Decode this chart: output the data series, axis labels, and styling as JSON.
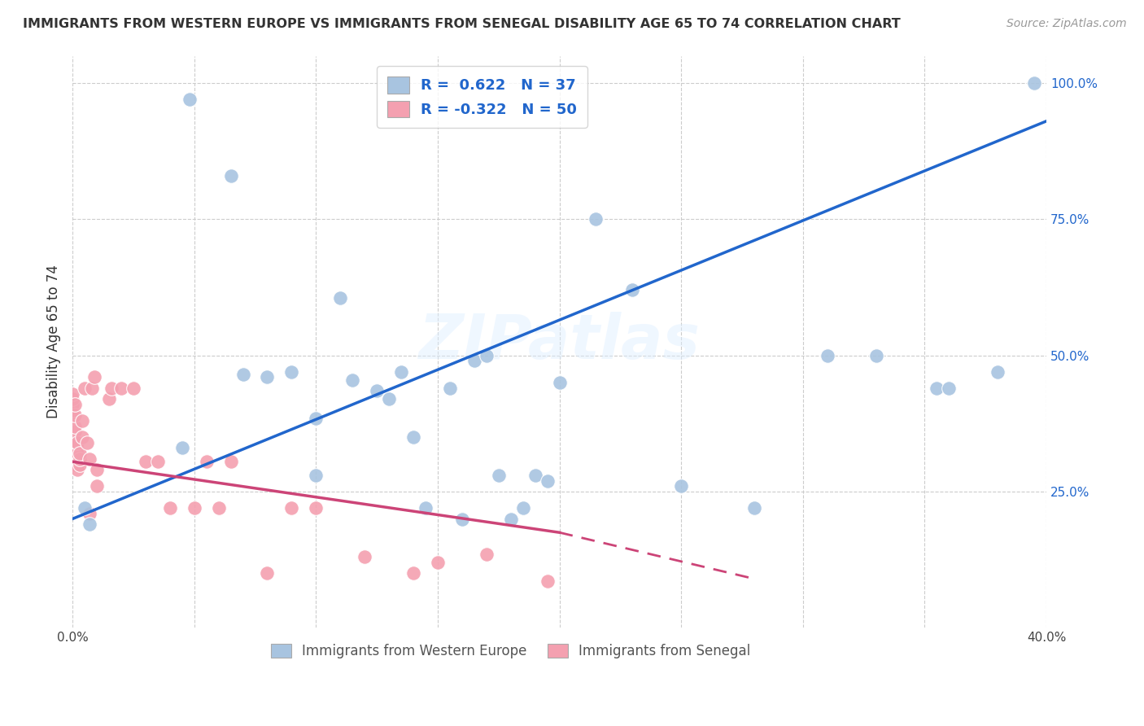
{
  "title": "IMMIGRANTS FROM WESTERN EUROPE VS IMMIGRANTS FROM SENEGAL DISABILITY AGE 65 TO 74 CORRELATION CHART",
  "source": "Source: ZipAtlas.com",
  "ylabel": "Disability Age 65 to 74",
  "xlim": [
    0.0,
    0.4
  ],
  "ylim": [
    0.0,
    1.05
  ],
  "xtick_vals": [
    0.0,
    0.05,
    0.1,
    0.15,
    0.2,
    0.25,
    0.3,
    0.35,
    0.4
  ],
  "xtick_labels": [
    "0.0%",
    "",
    "",
    "",
    "",
    "",
    "",
    "",
    "40.0%"
  ],
  "ytick_vals_right": [
    0.0,
    0.25,
    0.5,
    0.75,
    1.0
  ],
  "ytick_labels_right": [
    "",
    "25.0%",
    "50.0%",
    "75.0%",
    "100.0%"
  ],
  "blue_R": 0.622,
  "blue_N": 37,
  "pink_R": -0.322,
  "pink_N": 50,
  "blue_color": "#A8C4E0",
  "pink_color": "#F4A0B0",
  "blue_line_color": "#2166CC",
  "pink_line_color": "#CC4477",
  "grid_color": "#CCCCCC",
  "background_color": "#FFFFFF",
  "watermark": "ZIPatlas",
  "blue_line_x0": 0.0,
  "blue_line_y0": 0.2,
  "blue_line_x1": 0.4,
  "blue_line_y1": 0.93,
  "pink_line_x0": 0.0,
  "pink_line_x1": 0.2,
  "pink_line_y0": 0.305,
  "pink_line_y1": 0.175,
  "pink_line_dash_x1": 0.28,
  "pink_line_dash_y1": 0.09,
  "blue_scatter_x": [
    0.005,
    0.007,
    0.045,
    0.048,
    0.065,
    0.07,
    0.08,
    0.09,
    0.1,
    0.1,
    0.11,
    0.115,
    0.125,
    0.13,
    0.135,
    0.14,
    0.145,
    0.155,
    0.16,
    0.165,
    0.17,
    0.175,
    0.18,
    0.185,
    0.19,
    0.195,
    0.2,
    0.215,
    0.23,
    0.25,
    0.28,
    0.31,
    0.33,
    0.355,
    0.36,
    0.38,
    0.395
  ],
  "blue_scatter_y": [
    0.22,
    0.19,
    0.33,
    0.97,
    0.83,
    0.465,
    0.46,
    0.47,
    0.385,
    0.28,
    0.605,
    0.455,
    0.435,
    0.42,
    0.47,
    0.35,
    0.22,
    0.44,
    0.2,
    0.49,
    0.5,
    0.28,
    0.2,
    0.22,
    0.28,
    0.27,
    0.45,
    0.75,
    0.62,
    0.26,
    0.22,
    0.5,
    0.5,
    0.44,
    0.44,
    0.47,
    1.0
  ],
  "pink_scatter_x": [
    0.0,
    0.0,
    0.0,
    0.0,
    0.0,
    0.0,
    0.001,
    0.001,
    0.001,
    0.001,
    0.001,
    0.001,
    0.001,
    0.001,
    0.002,
    0.002,
    0.002,
    0.002,
    0.003,
    0.003,
    0.003,
    0.004,
    0.004,
    0.005,
    0.006,
    0.007,
    0.007,
    0.008,
    0.009,
    0.01,
    0.01,
    0.015,
    0.016,
    0.02,
    0.025,
    0.03,
    0.035,
    0.04,
    0.05,
    0.055,
    0.06,
    0.065,
    0.08,
    0.09,
    0.1,
    0.12,
    0.14,
    0.15,
    0.17,
    0.195
  ],
  "pink_scatter_y": [
    0.37,
    0.39,
    0.4,
    0.41,
    0.42,
    0.43,
    0.3,
    0.32,
    0.33,
    0.34,
    0.36,
    0.37,
    0.39,
    0.41,
    0.29,
    0.31,
    0.32,
    0.34,
    0.3,
    0.31,
    0.32,
    0.35,
    0.38,
    0.44,
    0.34,
    0.21,
    0.31,
    0.44,
    0.46,
    0.26,
    0.29,
    0.42,
    0.44,
    0.44,
    0.44,
    0.305,
    0.305,
    0.22,
    0.22,
    0.305,
    0.22,
    0.305,
    0.1,
    0.22,
    0.22,
    0.13,
    0.1,
    0.12,
    0.135,
    0.085
  ],
  "figsize": [
    14.06,
    8.92
  ],
  "dpi": 100
}
